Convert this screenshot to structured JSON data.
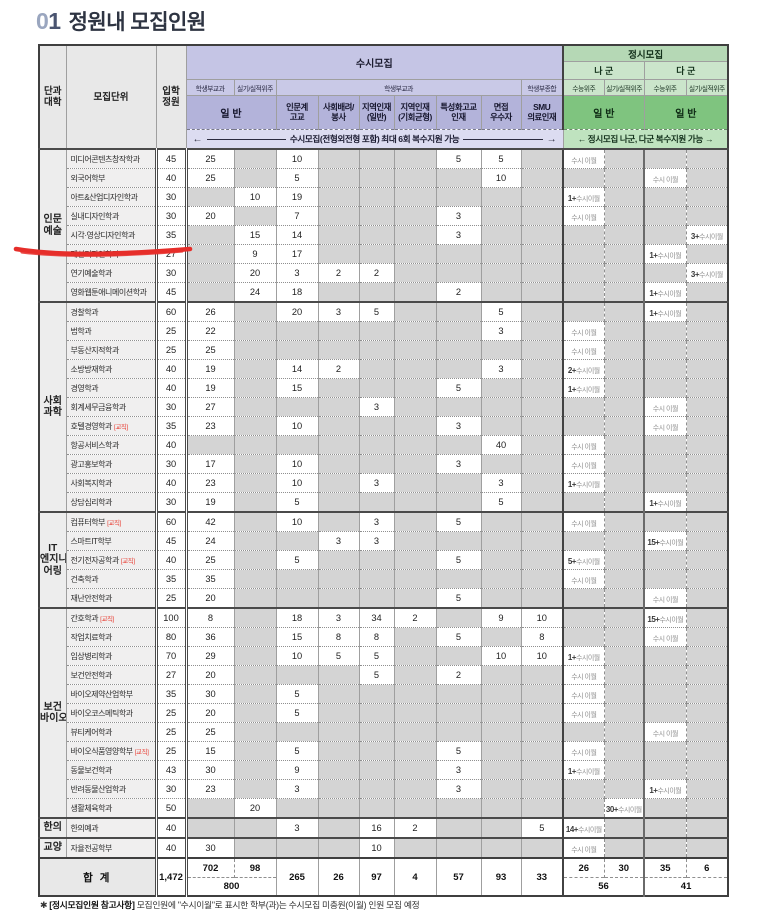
{
  "title": {
    "number_first": "0",
    "number_second": "1",
    "text": "정원내 모집인원"
  },
  "table": {
    "corner": {
      "college": "단과\n대학",
      "unit": "모집단위",
      "quota": "입학\n정원"
    },
    "susi": {
      "title": "수시모집",
      "type_heads": [
        "학생부교과",
        "실기/실적위주",
        "학생부교과",
        "학생부종합"
      ],
      "general_label": "일 반",
      "columns": [
        "인문계\n고교",
        "사회배려/\n봉사",
        "지역인재\n(일반)",
        "지역인재\n(기회균형)",
        "특성화고교\n인재",
        "면접\n우수자",
        "SMU\n의료인재"
      ],
      "note": "수시모집(전형외전형 포함) 최대 6회 복수지원 가능"
    },
    "jeongsi": {
      "title": "정시모집",
      "groups": [
        "나 군",
        "다 군"
      ],
      "type_heads": [
        "수능위주",
        "실기/실적위주",
        "수능위주",
        "실기/실적위주"
      ],
      "general_label": "일 반",
      "note": "← 정시모집 나군, 다군 복수지원 가능 →"
    },
    "sections": [
      {
        "college": "인문\n예술",
        "rows": [
          {
            "dept": "미디어콘텐츠창작학과",
            "quota": "45",
            "v": [
              "25",
              "",
              "10",
              "",
              "",
              "",
              "5",
              "5",
              "",
              "수시 이월",
              "",
              "",
              ""
            ]
          },
          {
            "dept": "외국어학부",
            "quota": "40",
            "v": [
              "25",
              "",
              "5",
              "",
              "",
              "",
              "",
              "10",
              "",
              "",
              "",
              "수시 이월",
              ""
            ]
          },
          {
            "dept": "아트&산업디자인학과",
            "quota": "30",
            "v": [
              "",
              "10",
              "19",
              "",
              "",
              "",
              "",
              "",
              "",
              "1+수시이월",
              "",
              "",
              ""
            ]
          },
          {
            "dept": "실내디자인학과",
            "quota": "30",
            "v": [
              "20",
              "",
              "7",
              "",
              "",
              "",
              "3",
              "",
              "",
              "수시 이월",
              "",
              "",
              ""
            ]
          },
          {
            "dept": "시각·영상디자인학과",
            "quota": "35",
            "v": [
              "",
              "15",
              "14",
              "",
              "",
              "",
              "3",
              "",
              "",
              "",
              "",
              "",
              "3+수시이월"
            ]
          },
          {
            "dept": "패션디자인학과",
            "quota": "27",
            "v": [
              "",
              "9",
              "17",
              "",
              "",
              "",
              "",
              "",
              "",
              "",
              "",
              "1+수시이월",
              ""
            ]
          },
          {
            "dept": "연기예술학과",
            "quota": "30",
            "v": [
              "",
              "20",
              "3",
              "2",
              "2",
              "",
              "",
              "",
              "",
              "",
              "",
              "",
              "3+수시이월"
            ]
          },
          {
            "dept": "영화웹툰애니메이션학과",
            "quota": "45",
            "v": [
              "",
              "24",
              "18",
              "",
              "",
              "",
              "2",
              "",
              "",
              "",
              "",
              "1+수시이월",
              ""
            ]
          }
        ]
      },
      {
        "college": "사회\n과학",
        "rows": [
          {
            "dept": "경찰학과",
            "quota": "60",
            "v": [
              "26",
              "",
              "20",
              "3",
              "5",
              "",
              "",
              "5",
              "",
              "",
              "",
              "1+수시이월",
              ""
            ]
          },
          {
            "dept": "법학과",
            "quota": "25",
            "v": [
              "22",
              "",
              "",
              "",
              "",
              "",
              "",
              "3",
              "",
              "수시 이월",
              "",
              "",
              ""
            ]
          },
          {
            "dept": "부동산지적학과",
            "quota": "25",
            "v": [
              "25",
              "",
              "",
              "",
              "",
              "",
              "",
              "",
              "",
              "수시 이월",
              "",
              "",
              ""
            ]
          },
          {
            "dept": "소방방재학과",
            "quota": "40",
            "v": [
              "19",
              "",
              "14",
              "2",
              "",
              "",
              "",
              "3",
              "",
              "2+수시이월",
              "",
              "",
              ""
            ]
          },
          {
            "dept": "경영학과",
            "quota": "40",
            "v": [
              "19",
              "",
              "15",
              "",
              "",
              "",
              "5",
              "",
              "",
              "1+수시이월",
              "",
              "",
              ""
            ]
          },
          {
            "dept": "회계세무금융학과",
            "quota": "30",
            "v": [
              "27",
              "",
              "",
              "",
              "3",
              "",
              "",
              "",
              "",
              "",
              "",
              "수시 이월",
              ""
            ]
          },
          {
            "dept": "호텔경영학과",
            "badge": "[교직]",
            "quota": "35",
            "v": [
              "23",
              "",
              "10",
              "",
              "",
              "",
              "3",
              "",
              "",
              "",
              "",
              "수시 이월",
              ""
            ]
          },
          {
            "dept": "항공서비스학과",
            "quota": "40",
            "v": [
              "",
              "",
              "",
              "",
              "",
              "",
              "",
              "40",
              "",
              "수시 이월",
              "",
              "",
              ""
            ]
          },
          {
            "dept": "광고홍보학과",
            "quota": "30",
            "v": [
              "17",
              "",
              "10",
              "",
              "",
              "",
              "3",
              "",
              "",
              "수시 이월",
              "",
              "",
              ""
            ]
          },
          {
            "dept": "사회복지학과",
            "quota": "40",
            "v": [
              "23",
              "",
              "10",
              "",
              "3",
              "",
              "",
              "3",
              "",
              "1+수시이월",
              "",
              "",
              ""
            ]
          },
          {
            "dept": "상담심리학과",
            "quota": "30",
            "v": [
              "19",
              "",
              "5",
              "",
              "",
              "",
              "",
              "5",
              "",
              "",
              "",
              "1+수시이월",
              ""
            ]
          }
        ]
      },
      {
        "college": "IT\n엔지니\n어링",
        "rows": [
          {
            "dept": "컴퓨터학부",
            "badge": "[교직]",
            "quota": "60",
            "v": [
              "42",
              "",
              "10",
              "",
              "3",
              "",
              "5",
              "",
              "",
              "수시 이월",
              "",
              "",
              ""
            ]
          },
          {
            "dept": "스마트IT학부",
            "quota": "45",
            "v": [
              "24",
              "",
              "",
              "3",
              "3",
              "",
              "",
              "",
              "",
              "",
              "",
              "15+수시이월",
              ""
            ]
          },
          {
            "dept": "전기전자공학과",
            "badge": "[교직]",
            "quota": "40",
            "v": [
              "25",
              "",
              "5",
              "",
              "",
              "",
              "5",
              "",
              "",
              "5+수시이월",
              "",
              "",
              ""
            ]
          },
          {
            "dept": "건축학과",
            "quota": "35",
            "v": [
              "35",
              "",
              "",
              "",
              "",
              "",
              "",
              "",
              "",
              "수시 이월",
              "",
              "",
              ""
            ]
          },
          {
            "dept": "재난안전학과",
            "quota": "25",
            "v": [
              "20",
              "",
              "",
              "",
              "",
              "",
              "5",
              "",
              "",
              "",
              "",
              "수시 이월",
              ""
            ]
          }
        ]
      },
      {
        "college": "보건\n바이오",
        "rows": [
          {
            "dept": "간호학과",
            "badge": "[교직]",
            "quota": "100",
            "v": [
              "8",
              "",
              "18",
              "3",
              "34",
              "2",
              "",
              "9",
              "10",
              "",
              "",
              "15+수시이월",
              ""
            ]
          },
          {
            "dept": "작업치료학과",
            "quota": "80",
            "v": [
              "36",
              "",
              "15",
              "8",
              "8",
              "",
              "5",
              "",
              "8",
              "",
              "",
              "수시 이월",
              ""
            ]
          },
          {
            "dept": "임상병리학과",
            "quota": "70",
            "v": [
              "29",
              "",
              "10",
              "5",
              "5",
              "",
              "",
              "10",
              "10",
              "1+수시이월",
              "",
              "",
              ""
            ]
          },
          {
            "dept": "보건안전학과",
            "quota": "27",
            "v": [
              "20",
              "",
              "",
              "",
              "5",
              "",
              "2",
              "",
              "",
              "수시 이월",
              "",
              "",
              ""
            ]
          },
          {
            "dept": "바이오제약산업학부",
            "quota": "35",
            "v": [
              "30",
              "",
              "5",
              "",
              "",
              "",
              "",
              "",
              "",
              "수시 이월",
              "",
              "",
              ""
            ]
          },
          {
            "dept": "바이오코스메틱학과",
            "quota": "25",
            "v": [
              "20",
              "",
              "5",
              "",
              "",
              "",
              "",
              "",
              "",
              "수시 이월",
              "",
              "",
              ""
            ]
          },
          {
            "dept": "뷰티케어학과",
            "quota": "25",
            "v": [
              "25",
              "",
              "",
              "",
              "",
              "",
              "",
              "",
              "",
              "",
              "",
              "수시 이월",
              ""
            ]
          },
          {
            "dept": "바이오식품영양학부",
            "badge": "[교직]",
            "quota": "25",
            "v": [
              "15",
              "",
              "5",
              "",
              "",
              "",
              "5",
              "",
              "",
              "수시 이월",
              "",
              "",
              ""
            ]
          },
          {
            "dept": "동물보건학과",
            "quota": "43",
            "v": [
              "30",
              "",
              "9",
              "",
              "",
              "",
              "3",
              "",
              "",
              "1+수시이월",
              "",
              "",
              ""
            ]
          },
          {
            "dept": "반려동물산업학과",
            "quota": "30",
            "v": [
              "23",
              "",
              "3",
              "",
              "",
              "",
              "3",
              "",
              "",
              "",
              "",
              "1+수시이월",
              ""
            ]
          },
          {
            "dept": "생활체육학과",
            "quota": "50",
            "v": [
              "",
              "20",
              "",
              "",
              "",
              "",
              "",
              "",
              "",
              "",
              "30+수시이월",
              "",
              ""
            ]
          }
        ]
      },
      {
        "college": "한의",
        "rows": [
          {
            "dept": "한의예과",
            "quota": "40",
            "v": [
              "",
              "",
              "3",
              "",
              "16",
              "2",
              "",
              "",
              "5",
              "14+수시이월",
              "",
              "",
              ""
            ]
          }
        ]
      },
      {
        "college": "교양",
        "rows": [
          {
            "dept": "자율전공학부",
            "quota": "40",
            "v": [
              "30",
              "",
              "",
              "",
              "10",
              "",
              "",
              "",
              "",
              "수시 이월",
              "",
              "",
              ""
            ]
          }
        ]
      }
    ],
    "total": {
      "label": "합 계",
      "quota": "1,472",
      "top": [
        "702",
        "98",
        "265",
        "26",
        "97",
        "4",
        "57",
        "93",
        "33",
        "26",
        "30",
        "35",
        "6"
      ],
      "span_susi_general": "800",
      "span_na": "56",
      "span_da": "41"
    }
  },
  "annotation": {
    "shape": "red-scribble-underline",
    "color": "#e62e2a"
  },
  "footnote": {
    "marker": "✱",
    "bold": "[정시모집인원 참고사항]",
    "text": "모집인원에 \"수시이월\"로 표시한 학부(과)는 수시모집 미충원(이월) 인원 모집 예정"
  }
}
